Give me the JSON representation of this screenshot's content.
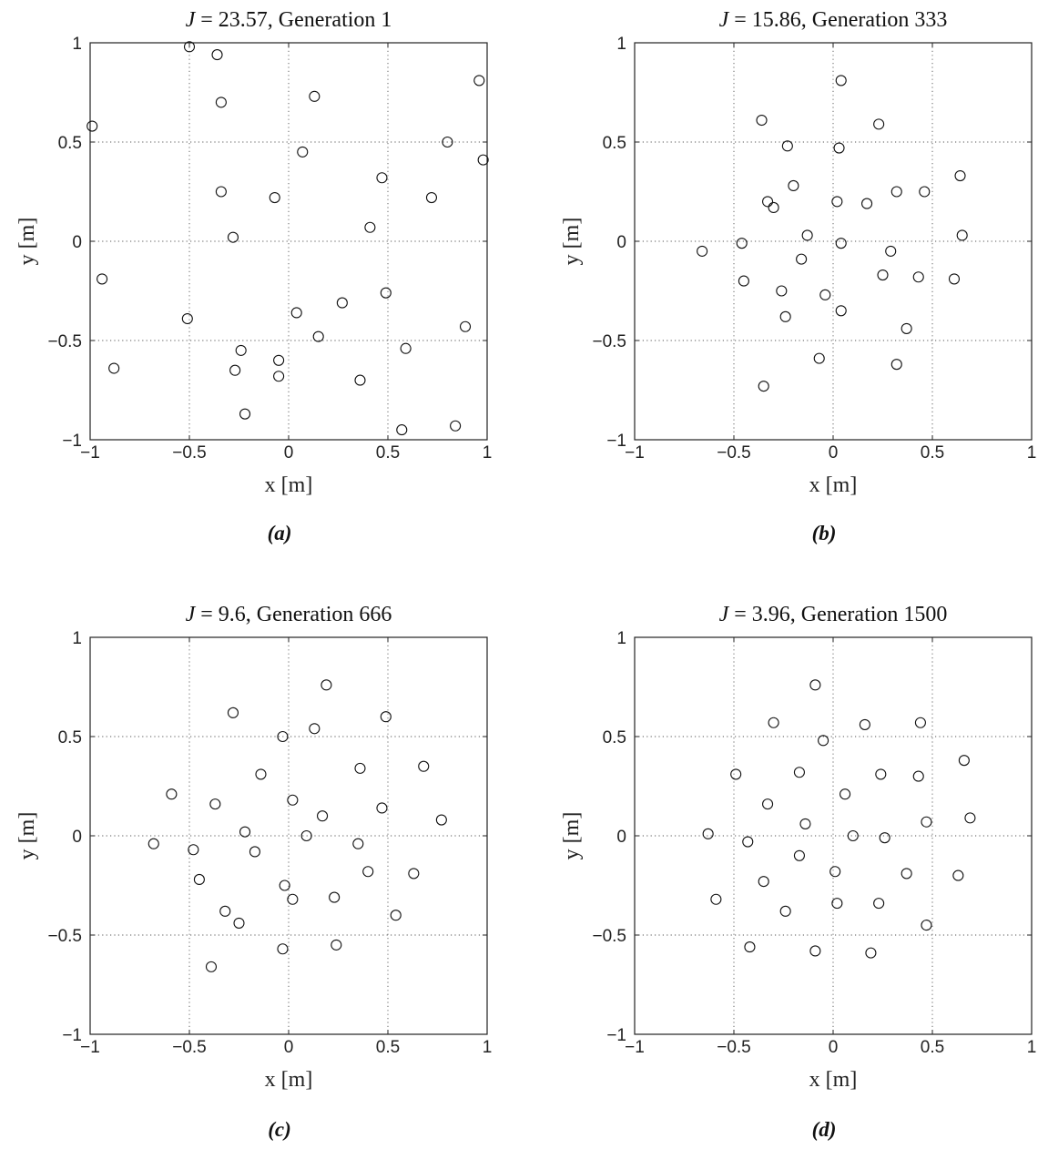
{
  "chart_data": [
    {
      "type": "scatter",
      "title": "J = 23.57, Generation 1",
      "title_var": "J",
      "title_rest": " = 23.57, Generation 1",
      "panel_label": "(a)",
      "xlabel": "x [m]",
      "ylabel": "y [m]",
      "xlim": [
        -1,
        1
      ],
      "ylim": [
        -1,
        1
      ],
      "xticks": [
        -1,
        -0.5,
        0,
        0.5,
        1
      ],
      "yticks": [
        -1,
        -0.5,
        0,
        0.5,
        1
      ],
      "x_tick_labels": [
        "−1",
        "−0.5",
        "0",
        "0.5",
        "1"
      ],
      "y_tick_labels": [
        "−1",
        "−0.5",
        "0",
        "0.5",
        "1"
      ],
      "grid": true,
      "marker": "open-circle",
      "series": [
        {
          "x": [
            -0.5,
            -0.36,
            -0.34,
            0.13,
            0.96,
            -0.99,
            0.8,
            0.07,
            0.98,
            0.47,
            -0.34,
            -0.07,
            0.72,
            0.41,
            -0.28,
            -0.94,
            0.49,
            0.27,
            0.04,
            -0.51,
            0.89,
            0.15,
            -0.24,
            0.59,
            -0.27,
            -0.05,
            -0.05,
            0.36,
            -0.22,
            0.57,
            0.84,
            -0.88
          ],
          "y": [
            0.98,
            0.94,
            0.7,
            0.73,
            0.81,
            0.58,
            0.5,
            0.45,
            0.41,
            0.32,
            0.25,
            0.22,
            0.22,
            0.07,
            0.02,
            -0.19,
            -0.26,
            -0.31,
            -0.36,
            -0.39,
            -0.43,
            -0.48,
            -0.55,
            -0.54,
            -0.65,
            -0.6,
            -0.68,
            -0.7,
            -0.87,
            -0.95,
            -0.93,
            -0.64
          ]
        }
      ]
    },
    {
      "type": "scatter",
      "title": "J = 15.86, Generation 333",
      "title_var": "J",
      "title_rest": " = 15.86, Generation 333",
      "panel_label": "(b)",
      "xlabel": "x [m]",
      "ylabel": "y [m]",
      "xlim": [
        -1,
        1
      ],
      "ylim": [
        -1,
        1
      ],
      "xticks": [
        -1,
        -0.5,
        0,
        0.5,
        1
      ],
      "yticks": [
        -1,
        -0.5,
        0,
        0.5,
        1
      ],
      "x_tick_labels": [
        "−1",
        "−0.5",
        "0",
        "0.5",
        "1"
      ],
      "y_tick_labels": [
        "−1",
        "−0.5",
        "0",
        "0.5",
        "1"
      ],
      "grid": true,
      "marker": "open-circle",
      "series": [
        {
          "x": [
            0.04,
            -0.36,
            0.23,
            -0.23,
            0.03,
            0.64,
            -0.2,
            0.32,
            0.46,
            -0.33,
            -0.3,
            0.02,
            0.17,
            -0.66,
            -0.46,
            -0.13,
            0.04,
            0.65,
            0.29,
            -0.16,
            0.25,
            0.43,
            0.61,
            -0.45,
            -0.26,
            -0.04,
            -0.24,
            0.04,
            0.37,
            -0.07,
            0.32,
            -0.35
          ],
          "y": [
            0.81,
            0.61,
            0.59,
            0.48,
            0.47,
            0.33,
            0.28,
            0.25,
            0.25,
            0.2,
            0.17,
            0.2,
            0.19,
            -0.05,
            -0.01,
            0.03,
            -0.01,
            0.03,
            -0.05,
            -0.09,
            -0.17,
            -0.18,
            -0.19,
            -0.2,
            -0.25,
            -0.27,
            -0.38,
            -0.35,
            -0.44,
            -0.59,
            -0.62,
            -0.73
          ]
        }
      ]
    },
    {
      "type": "scatter",
      "title": "J = 9.6, Generation 666",
      "title_var": "J",
      "title_rest": " = 9.6, Generation 666",
      "panel_label": "(c)",
      "xlabel": "x [m]",
      "ylabel": "y [m]",
      "xlim": [
        -1,
        1
      ],
      "ylim": [
        -1,
        1
      ],
      "xticks": [
        -1,
        -0.5,
        0,
        0.5,
        1
      ],
      "yticks": [
        -1,
        -0.5,
        0,
        0.5,
        1
      ],
      "x_tick_labels": [
        "−1",
        "−0.5",
        "0",
        "0.5",
        "1"
      ],
      "y_tick_labels": [
        "−1",
        "−0.5",
        "0",
        "0.5",
        "1"
      ],
      "grid": true,
      "marker": "open-circle",
      "series": [
        {
          "x": [
            0.19,
            -0.28,
            0.49,
            -0.03,
            0.13,
            0.68,
            0.36,
            -0.14,
            -0.59,
            0.02,
            -0.37,
            0.47,
            0.77,
            0.17,
            -0.22,
            0.09,
            -0.68,
            -0.48,
            0.35,
            -0.17,
            0.4,
            0.63,
            -0.45,
            -0.02,
            0.02,
            0.23,
            -0.32,
            0.54,
            -0.25,
            0.24,
            -0.03,
            -0.39
          ],
          "y": [
            0.76,
            0.62,
            0.6,
            0.5,
            0.54,
            0.35,
            0.34,
            0.31,
            0.21,
            0.18,
            0.16,
            0.14,
            0.08,
            0.1,
            0.02,
            0.0,
            -0.04,
            -0.07,
            -0.04,
            -0.08,
            -0.18,
            -0.19,
            -0.22,
            -0.25,
            -0.32,
            -0.31,
            -0.38,
            -0.4,
            -0.44,
            -0.55,
            -0.57,
            -0.66
          ]
        }
      ]
    },
    {
      "type": "scatter",
      "title": "J = 3.96, Generation 1500",
      "title_var": "J",
      "title_rest": " = 3.96, Generation 1500",
      "panel_label": "(d)",
      "xlabel": "x [m]",
      "ylabel": "y [m]",
      "xlim": [
        -1,
        1
      ],
      "ylim": [
        -1,
        1
      ],
      "xticks": [
        -1,
        -0.5,
        0,
        0.5,
        1
      ],
      "yticks": [
        -1,
        -0.5,
        0,
        0.5,
        1
      ],
      "x_tick_labels": [
        "−1",
        "−0.5",
        "0",
        "0.5",
        "1"
      ],
      "y_tick_labels": [
        "−1",
        "−0.5",
        "0",
        "0.5",
        "1"
      ],
      "grid": true,
      "marker": "open-circle",
      "series": [
        {
          "x": [
            -0.09,
            -0.3,
            0.16,
            0.44,
            -0.05,
            0.66,
            -0.49,
            -0.17,
            0.24,
            0.43,
            0.06,
            -0.33,
            -0.14,
            0.47,
            0.69,
            -0.63,
            0.1,
            0.26,
            -0.43,
            -0.17,
            0.01,
            0.37,
            0.63,
            -0.35,
            -0.59,
            0.02,
            0.23,
            -0.24,
            0.47,
            -0.42,
            -0.09,
            0.19
          ],
          "y": [
            0.76,
            0.57,
            0.56,
            0.57,
            0.48,
            0.38,
            0.31,
            0.32,
            0.31,
            0.3,
            0.21,
            0.16,
            0.06,
            0.07,
            0.09,
            0.01,
            0.0,
            -0.01,
            -0.03,
            -0.1,
            -0.18,
            -0.19,
            -0.2,
            -0.23,
            -0.32,
            -0.34,
            -0.34,
            -0.38,
            -0.45,
            -0.56,
            -0.58,
            -0.59
          ]
        }
      ]
    }
  ]
}
